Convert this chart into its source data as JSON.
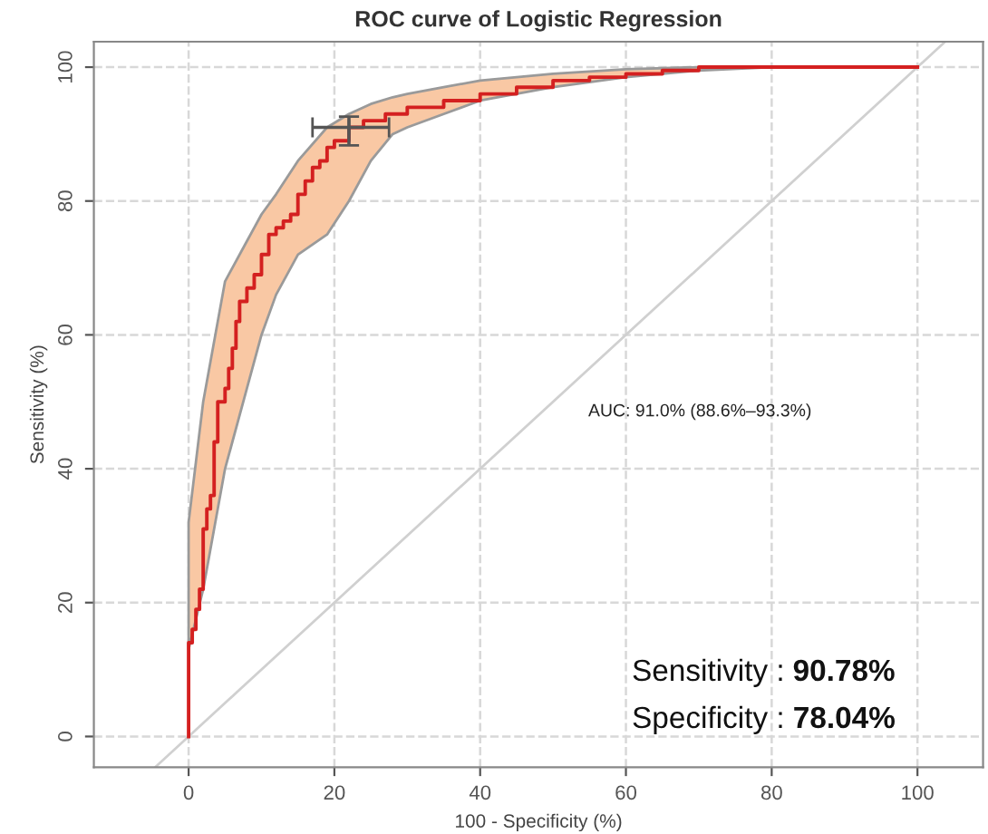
{
  "chart_data": {
    "type": "step",
    "title": "ROC curve of Logistic Regression",
    "xlabel": "100 - Specificity (%)",
    "ylabel": "Sensitivity (%)",
    "xlim": [
      -13,
      109
    ],
    "ylim": [
      -4.6,
      103.8
    ],
    "xticks": [
      0,
      20,
      40,
      60,
      80,
      100
    ],
    "yticks": [
      0,
      20,
      40,
      60,
      80,
      100
    ],
    "grid": true,
    "legend": false,
    "line_style": "solid",
    "series": [
      {
        "type": "area",
        "color": "#f9c8a4",
        "x": [
          0,
          2,
          5,
          8,
          10,
          12,
          15,
          19,
          22,
          25,
          28,
          30,
          35,
          40,
          50,
          60,
          70,
          80
        ],
        "values": [
          null,
          null,
          null,
          null,
          null,
          null,
          null,
          null,
          null,
          null,
          null,
          null,
          null,
          null,
          null,
          null,
          null,
          null
        ],
        "lower": [
          13,
          22,
          40,
          52,
          60,
          66,
          72,
          75,
          80,
          86,
          90,
          91,
          93,
          95,
          97,
          98.5,
          99.5,
          100
        ],
        "upper": [
          32,
          50,
          68,
          74,
          78,
          81,
          86,
          91,
          93,
          94.5,
          95.5,
          96,
          97,
          98,
          99,
          99.7,
          100,
          100
        ]
      },
      {
        "type": "line",
        "color": "#d0d0d0",
        "x": [
          -4.5,
          103.8
        ],
        "values": [
          -4.5,
          103.8
        ]
      },
      {
        "color": "#d42020",
        "x": [
          0,
          0,
          0.5,
          1,
          1.5,
          2,
          2.5,
          3,
          3.5,
          4,
          5,
          5.5,
          6,
          6.5,
          7,
          8,
          9,
          10,
          11,
          12,
          13,
          14,
          15,
          16,
          17,
          18,
          19,
          20,
          22,
          24,
          27,
          30,
          35,
          40,
          45,
          50,
          55,
          60,
          65,
          70,
          100
        ],
        "values": [
          0,
          14,
          16,
          19,
          22,
          31,
          34,
          36,
          44,
          50,
          52,
          55,
          58,
          62,
          65,
          67,
          69,
          72,
          75,
          76,
          77,
          78,
          81,
          83,
          85,
          86,
          88,
          89,
          91,
          92,
          93,
          94,
          95,
          96,
          97,
          98,
          98.5,
          99,
          99.5,
          100,
          100
        ]
      },
      {
        "type": "scatter",
        "color": "#555555",
        "marker": "cross",
        "x": [
          22
        ],
        "values": [
          91
        ],
        "xerrors": [
          [
            17,
            27.5
          ]
        ],
        "errors": [
          [
            88.3,
            92.6
          ]
        ]
      }
    ],
    "annotations": [
      "AUC: 91.0% (88.6%–93.3%)",
      "Sensitivity : 90.78%",
      "Specificity : 78.04%"
    ]
  }
}
